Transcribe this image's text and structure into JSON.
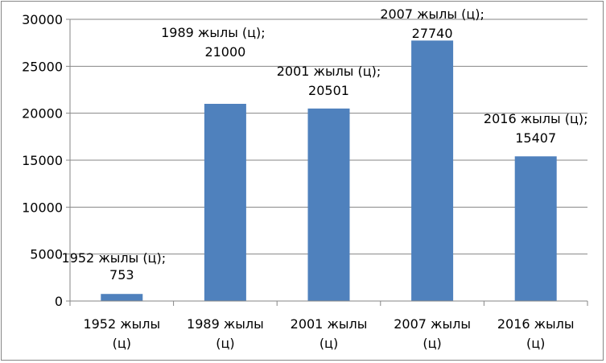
{
  "chart_data": {
    "type": "bar",
    "title": "",
    "xlabel": "",
    "ylabel": "",
    "categories": [
      "1952 жылы (ц)",
      "1989 жылы (ц)",
      "2001 жылы (ц)",
      "2007 жылы (ц)",
      "2016 жылы (ц)"
    ],
    "category_lines": [
      [
        "1952 жылы",
        "(ц)"
      ],
      [
        "1989 жылы",
        "(ц)"
      ],
      [
        "2001 жылы",
        "(ц)"
      ],
      [
        "2007 жылы",
        "(ц)"
      ],
      [
        "2016 жылы",
        "(ц)"
      ]
    ],
    "values": [
      753,
      21000,
      20501,
      27740,
      15407
    ],
    "data_labels": [
      [
        "1952 жылы (ц);",
        "753"
      ],
      [
        "1989 жылы (ц);",
        "21000"
      ],
      [
        "2001 жылы (ц);",
        "20501"
      ],
      [
        "2007 жылы (ц);",
        "27740"
      ],
      [
        "2016 жылы (ц);",
        "15407"
      ]
    ],
    "ylim": [
      0,
      30000
    ],
    "yticks": [
      0,
      5000,
      10000,
      15000,
      20000,
      25000,
      30000
    ],
    "grid": true,
    "legend": "none",
    "bar_color": "#4F81BD",
    "grid_color": "#868686"
  }
}
